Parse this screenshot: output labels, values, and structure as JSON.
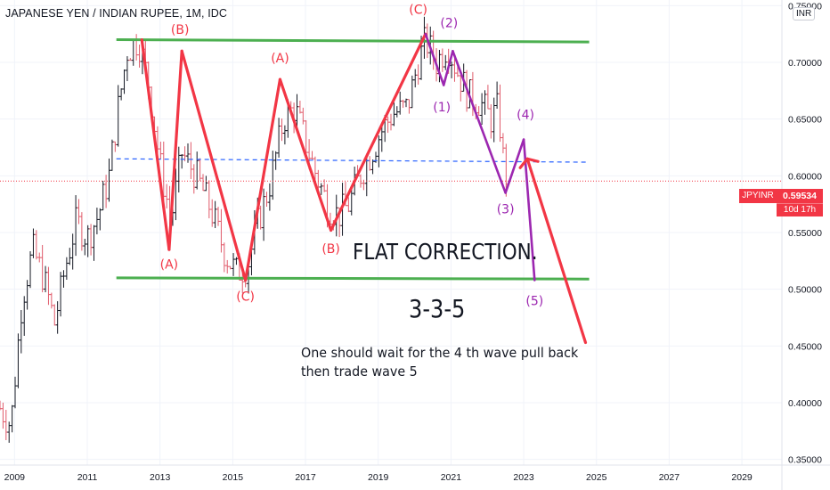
{
  "header": {
    "title": "JAPANESE YEN / INDIAN RUPEE, 1M, IDC",
    "currency": "INR"
  },
  "price_tag": {
    "symbol": "JPYINR",
    "last_price": "0.59534",
    "countdown": "10d 17h"
  },
  "annotations": {
    "flat_correction": "FLAT CORRECTION.",
    "pattern": "3-3-5",
    "note": "One should wait for the 4 th wave pull back then trade wave 5"
  },
  "colors": {
    "up_bar": "#131722",
    "down_bar": "#e05a6a",
    "corrective_lines": "#f23645",
    "impulse_lines": "#9c27b0",
    "channel_lines": "#4caf50",
    "midline": "#2962ff",
    "price_line": "#f23645",
    "grid": "#f0f3fa"
  },
  "chart_data": {
    "type": "line",
    "xlabel": "",
    "ylabel": "",
    "x_ticks": [
      "2009",
      "2011",
      "2013",
      "2015",
      "2017",
      "2019",
      "2021",
      "2023",
      "2025",
      "2027",
      "2029"
    ],
    "y_ticks": [
      "0.75000",
      "0.70000",
      "0.65000",
      "0.60000",
      "0.55000",
      "0.50000",
      "0.45000",
      "0.40000",
      "0.35000"
    ],
    "ylim": [
      0.345,
      0.755
    ],
    "xlim": [
      2008.6,
      2030.1
    ],
    "grid": true,
    "last_price": 0.59534,
    "price_path": [
      [
        2008.6,
        0.395
      ],
      [
        2008.9,
        0.38
      ],
      [
        2009.2,
        0.49
      ],
      [
        2009.5,
        0.535
      ],
      [
        2009.8,
        0.51
      ],
      [
        2010.1,
        0.47
      ],
      [
        2010.4,
        0.52
      ],
      [
        2010.7,
        0.56
      ],
      [
        2011.0,
        0.545
      ],
      [
        2011.3,
        0.565
      ],
      [
        2011.6,
        0.6
      ],
      [
        2011.85,
        0.66
      ],
      [
        2012.1,
        0.71
      ],
      [
        2012.4,
        0.72
      ],
      [
        2012.7,
        0.68
      ],
      [
        2013.0,
        0.61
      ],
      [
        2013.3,
        0.56
      ],
      [
        2013.6,
        0.62
      ],
      [
        2014.0,
        0.6
      ],
      [
        2014.4,
        0.57
      ],
      [
        2014.8,
        0.53
      ],
      [
        2015.1,
        0.515
      ],
      [
        2015.4,
        0.52
      ],
      [
        2015.7,
        0.56
      ],
      [
        2016.0,
        0.59
      ],
      [
        2016.4,
        0.65
      ],
      [
        2016.7,
        0.66
      ],
      [
        2017.0,
        0.63
      ],
      [
        2017.3,
        0.6
      ],
      [
        2017.6,
        0.575
      ],
      [
        2017.9,
        0.565
      ],
      [
        2018.2,
        0.575
      ],
      [
        2018.5,
        0.6
      ],
      [
        2018.8,
        0.62
      ],
      [
        2019.1,
        0.64
      ],
      [
        2019.4,
        0.655
      ],
      [
        2019.8,
        0.66
      ],
      [
        2020.1,
        0.7
      ],
      [
        2020.3,
        0.72
      ],
      [
        2020.6,
        0.7
      ],
      [
        2020.9,
        0.715
      ],
      [
        2021.2,
        0.69
      ],
      [
        2021.5,
        0.67
      ],
      [
        2021.8,
        0.665
      ],
      [
        2022.1,
        0.65
      ],
      [
        2022.3,
        0.66
      ],
      [
        2022.45,
        0.61
      ],
      [
        2022.55,
        0.59534
      ]
    ],
    "channel_lines": [
      {
        "from": [
          2011.8,
          0.72
        ],
        "to": [
          2024.8,
          0.718
        ]
      },
      {
        "from": [
          2011.8,
          0.51
        ],
        "to": [
          2024.8,
          0.509
        ]
      }
    ],
    "midline": {
      "from": [
        2011.8,
        0.615
      ],
      "to": [
        2024.8,
        0.612
      ]
    },
    "corrective_lines": [
      {
        "from": [
          2012.5,
          0.72
        ],
        "to": [
          2013.25,
          0.535
        ]
      },
      {
        "from": [
          2013.25,
          0.535
        ],
        "to": [
          2013.6,
          0.71
        ]
      },
      {
        "from": [
          2013.6,
          0.71
        ],
        "to": [
          2015.35,
          0.508
        ]
      },
      {
        "from": [
          2015.35,
          0.508
        ],
        "to": [
          2016.3,
          0.685
        ]
      },
      {
        "from": [
          2016.3,
          0.685
        ],
        "to": [
          2017.7,
          0.552
        ]
      },
      {
        "from": [
          2017.7,
          0.552
        ],
        "to": [
          2020.3,
          0.725
        ]
      },
      {
        "from": [
          2023.1,
          0.615
        ],
        "to": [
          2024.7,
          0.453
        ]
      }
    ],
    "impulse_lines": [
      {
        "from": [
          2020.3,
          0.725
        ],
        "to": [
          2020.8,
          0.68
        ]
      },
      {
        "from": [
          2020.8,
          0.68
        ],
        "to": [
          2021.05,
          0.71
        ]
      },
      {
        "from": [
          2021.05,
          0.71
        ],
        "to": [
          2022.5,
          0.585
        ]
      },
      {
        "from": [
          2022.5,
          0.585
        ],
        "to": [
          2023.0,
          0.632
        ]
      },
      {
        "from": [
          2023.0,
          0.632
        ],
        "to": [
          2023.3,
          0.508
        ]
      }
    ],
    "wave_labels": [
      {
        "text": "(B)",
        "at": [
          2013.55,
          0.725
        ],
        "color": "red"
      },
      {
        "text": "(A)",
        "at": [
          2013.25,
          0.518
        ],
        "color": "red"
      },
      {
        "text": "(A)",
        "at": [
          2016.3,
          0.7
        ],
        "color": "red"
      },
      {
        "text": "(C)",
        "at": [
          2015.35,
          0.49
        ],
        "color": "red"
      },
      {
        "text": "(B)",
        "at": [
          2017.7,
          0.532
        ],
        "color": "red"
      },
      {
        "text": "(C)",
        "at": [
          2020.1,
          0.743
        ],
        "color": "red"
      },
      {
        "text": "(2)",
        "at": [
          2020.95,
          0.731
        ],
        "color": "purple"
      },
      {
        "text": "(1)",
        "at": [
          2020.75,
          0.657
        ],
        "color": "purple"
      },
      {
        "text": "(4)",
        "at": [
          2023.05,
          0.65
        ],
        "color": "purple"
      },
      {
        "text": "(3)",
        "at": [
          2022.5,
          0.567
        ],
        "color": "purple"
      },
      {
        "text": "(5)",
        "at": [
          2023.3,
          0.486
        ],
        "color": "purple"
      }
    ]
  }
}
